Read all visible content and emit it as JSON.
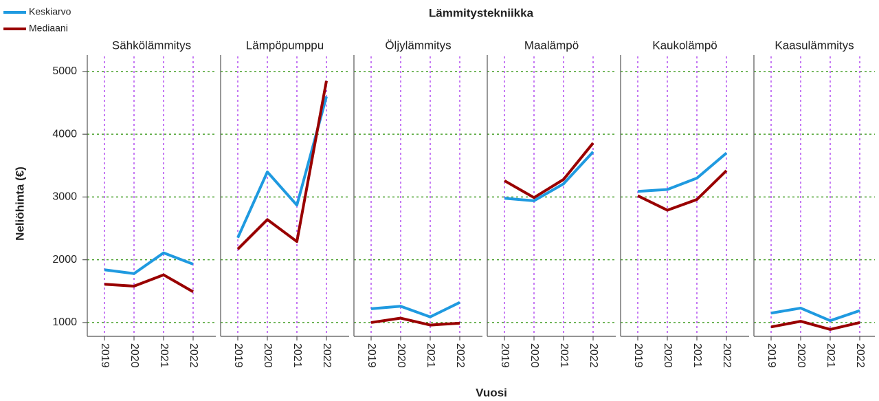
{
  "chart_data": {
    "type": "line",
    "title": "Lämmitystekniikka",
    "xlabel": "Vuosi",
    "ylabel": "Neliöhinta (€)",
    "categories": [
      "2019",
      "2020",
      "2021",
      "2022"
    ],
    "ylim": [
      780,
      5240
    ],
    "yticks": [
      1000,
      2000,
      3000,
      4000,
      5000
    ],
    "grid": true,
    "series": [
      {
        "name": "Keskiarvo",
        "color": "#1f9ae0"
      },
      {
        "name": "Mediaani",
        "color": "#990000"
      }
    ],
    "panels": [
      {
        "title": "Sähkölämmitys",
        "series": [
          {
            "values": [
              1840,
              1780,
              2110,
              1930
            ]
          },
          {
            "values": [
              1610,
              1580,
              1760,
              1490
            ]
          }
        ]
      },
      {
        "title": "Lämpöpumppu",
        "series": [
          {
            "values": [
              2350,
              3400,
              2870,
              4600
            ]
          },
          {
            "values": [
              2170,
              2640,
              2290,
              4850
            ]
          }
        ]
      },
      {
        "title": "Öljylämmitys",
        "series": [
          {
            "values": [
              1220,
              1260,
              1090,
              1320
            ]
          },
          {
            "values": [
              1000,
              1070,
              960,
              990
            ]
          }
        ]
      },
      {
        "title": "Maalämpö",
        "series": [
          {
            "values": [
              2980,
              2940,
              3210,
              3720
            ]
          },
          {
            "values": [
              3260,
              2990,
              3280,
              3860
            ]
          }
        ]
      },
      {
        "title": "Kaukolämpö",
        "series": [
          {
            "values": [
              3090,
              3120,
              3300,
              3700
            ]
          },
          {
            "values": [
              3020,
              2790,
              2960,
              3420
            ]
          }
        ]
      },
      {
        "title": "Kaasulämmitys",
        "series": [
          {
            "values": [
              1150,
              1230,
              1030,
              1190
            ]
          },
          {
            "values": [
              930,
              1020,
              890,
              1000
            ]
          }
        ]
      }
    ]
  }
}
